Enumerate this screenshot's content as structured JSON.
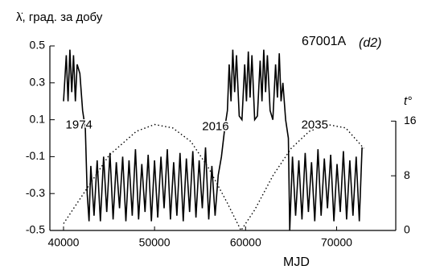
{
  "chart_data": {
    "type": "line",
    "title": "67001A",
    "subtitle": "(d2)",
    "y_label": "λ̇, град. за добу",
    "y2_label": "t°",
    "x_label": "MJD",
    "annotations": [
      {
        "text": "1974",
        "x": 41700,
        "y": 0.07
      },
      {
        "text": "2016",
        "x": 56700,
        "y": 0.06
      },
      {
        "text": "2035",
        "x": 67600,
        "y": 0.07
      }
    ],
    "xlim": [
      38500,
      76500
    ],
    "xticks": [
      40000,
      50000,
      60000,
      70000
    ],
    "ylim": [
      -0.5,
      0.5
    ],
    "yticks": [
      0.5,
      0.3,
      0.1,
      -0.1,
      -0.3,
      -0.5
    ],
    "y2lim": [
      0,
      27
    ],
    "y2ticks": [
      16,
      8,
      0
    ],
    "series": [
      {
        "color": "#000000",
        "style": "solid",
        "x": [
          40000,
          40300,
          40500,
          40700,
          40900,
          41100,
          41300,
          41500,
          41800,
          42100,
          42400,
          42600,
          42800,
          43000,
          43350,
          43700,
          44050,
          44400,
          44750,
          45100,
          45450,
          45800,
          46150,
          46500,
          46850,
          47200,
          47550,
          47900,
          48250,
          48600,
          48950,
          49300,
          49650,
          50000,
          50350,
          50700,
          51050,
          51400,
          51750,
          52100,
          52450,
          52800,
          53150,
          53500,
          53850,
          54200,
          54550,
          54900,
          55250,
          55600,
          55950,
          56300,
          56650,
          57000,
          57350,
          57700,
          58000,
          58200,
          58400,
          58600,
          58800,
          59000,
          59300,
          59600,
          59900,
          60100,
          60300,
          60500,
          60700,
          61000,
          61300,
          61600,
          61800,
          62000,
          62200,
          62400,
          62700,
          63000,
          63300,
          63500,
          63700,
          63900,
          64100,
          64400,
          64700,
          64850,
          65150,
          65500,
          65850,
          66200,
          66550,
          66900,
          67250,
          67600,
          67950,
          68300,
          68650,
          69000,
          69350,
          69700,
          70050,
          70400,
          70750,
          71100,
          71450,
          71800,
          72150,
          72500,
          72800
        ],
        "values": [
          0.2,
          0.45,
          0.2,
          0.48,
          0.25,
          0.45,
          0.2,
          0.4,
          0.35,
          0.15,
          0.05,
          -0.3,
          -0.45,
          -0.15,
          -0.42,
          -0.12,
          -0.45,
          -0.1,
          -0.4,
          -0.08,
          -0.44,
          -0.13,
          -0.38,
          -0.1,
          -0.45,
          -0.12,
          -0.42,
          -0.06,
          -0.44,
          -0.14,
          -0.4,
          -0.09,
          -0.45,
          -0.12,
          -0.43,
          -0.1,
          -0.38,
          -0.06,
          -0.44,
          -0.13,
          -0.42,
          -0.08,
          -0.45,
          -0.11,
          -0.4,
          -0.07,
          -0.43,
          -0.12,
          -0.38,
          -0.05,
          -0.44,
          -0.15,
          -0.42,
          -0.2,
          -0.1,
          0.05,
          0.15,
          0.4,
          0.2,
          0.48,
          0.25,
          0.45,
          0.12,
          0.1,
          0.4,
          0.2,
          0.47,
          0.22,
          0.45,
          0.1,
          0.12,
          0.42,
          0.2,
          0.48,
          0.25,
          0.45,
          0.15,
          0.1,
          0.4,
          0.22,
          0.46,
          0.2,
          0.3,
          0.1,
          0.0,
          -0.5,
          -0.1,
          -0.42,
          -0.12,
          -0.44,
          -0.08,
          -0.4,
          -0.13,
          -0.45,
          -0.06,
          -0.42,
          -0.11,
          -0.38,
          -0.09,
          -0.45,
          -0.14,
          -0.4,
          -0.07,
          -0.44,
          -0.12,
          -0.42,
          -0.1,
          -0.45,
          -0.05
        ]
      },
      {
        "color": "#000000",
        "style": "dotted",
        "axis": "y2",
        "x": [
          40000,
          42000,
          45000,
          48000,
          50000,
          52000,
          54000,
          56000,
          58000,
          59500,
          61000,
          63000,
          65000,
          67000,
          69000,
          71000,
          73000
        ],
        "values": [
          1,
          5,
          11,
          14.5,
          15.5,
          15,
          13,
          9,
          4,
          0,
          3,
          8,
          12,
          14.5,
          15.5,
          15,
          12
        ]
      }
    ]
  }
}
